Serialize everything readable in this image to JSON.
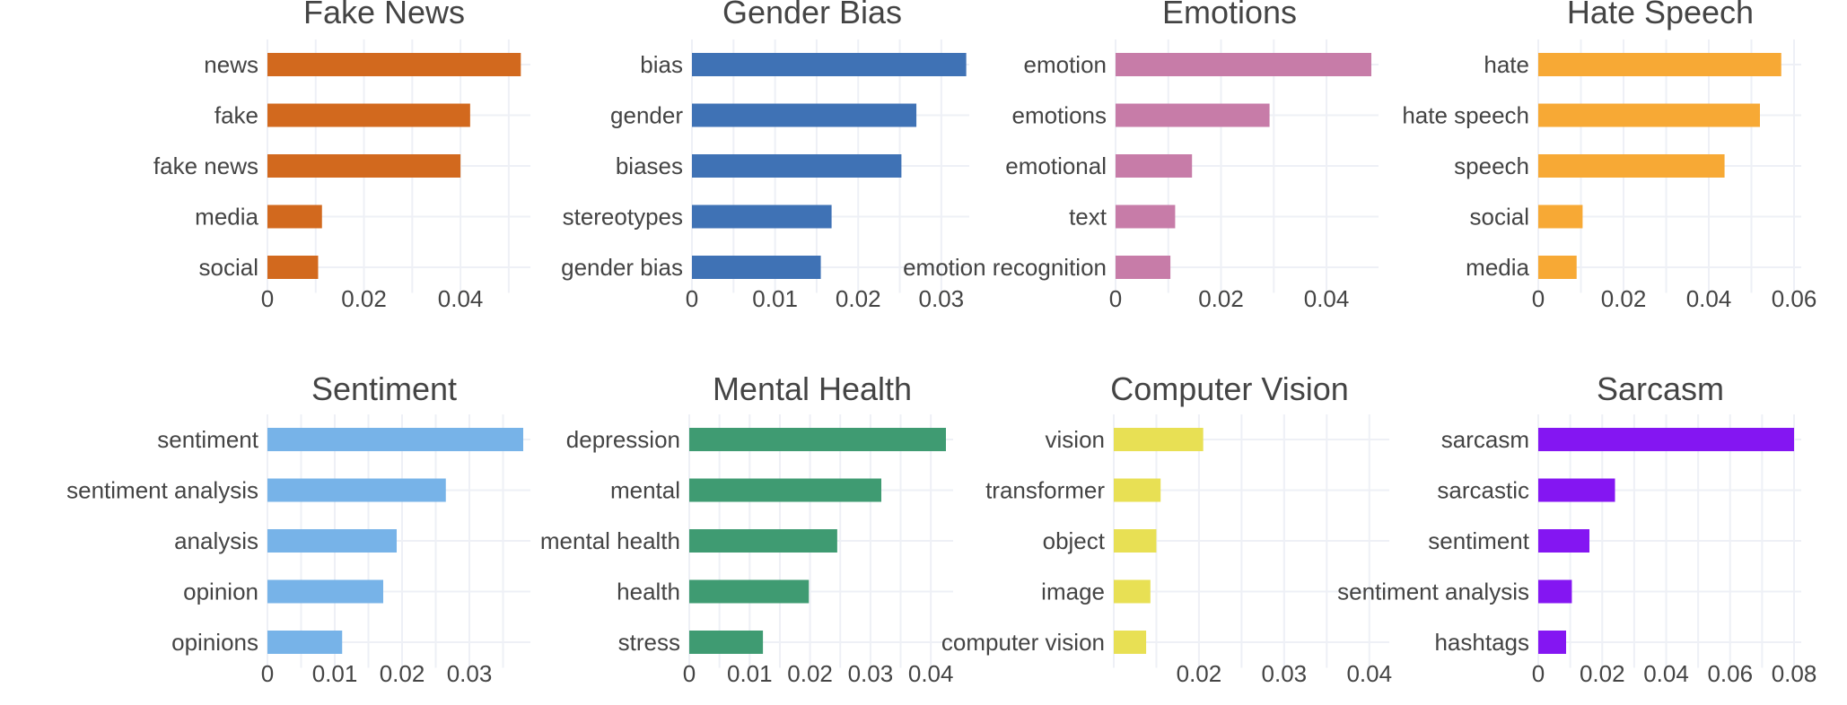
{
  "chart_data": [
    {
      "type": "bar",
      "orientation": "horizontal",
      "title": "Fake News",
      "categories": [
        "news",
        "fake",
        "fake news",
        "media",
        "social"
      ],
      "values": [
        0.0525,
        0.042,
        0.04,
        0.0113,
        0.0105
      ],
      "color": "#D2691E",
      "xlim": [
        0,
        0.053
      ],
      "xticks": [
        0,
        0.02,
        0.04
      ],
      "xtick_labels": [
        "0",
        "0.02",
        "0.04"
      ],
      "grid": true
    },
    {
      "type": "bar",
      "orientation": "horizontal",
      "title": "Gender Bias",
      "categories": [
        "bias",
        "gender",
        "biases",
        "stereotypes",
        "gender bias"
      ],
      "values": [
        0.033,
        0.027,
        0.0252,
        0.0168,
        0.0155
      ],
      "color": "#3F72B5",
      "xlim": [
        0,
        0.0325
      ],
      "xticks": [
        0,
        0.01,
        0.02,
        0.03
      ],
      "xtick_labels": [
        "0",
        "0.01",
        "0.02",
        "0.03"
      ],
      "grid": true
    },
    {
      "type": "bar",
      "orientation": "horizontal",
      "title": "Emotions",
      "categories": [
        "emotion",
        "emotions",
        "emotional",
        "text",
        "emotion recognition"
      ],
      "values": [
        0.0485,
        0.0292,
        0.0145,
        0.0113,
        0.0104
      ],
      "color": "#C77CA8",
      "xlim": [
        0,
        0.0485
      ],
      "xticks": [
        0,
        0.02,
        0.04
      ],
      "xtick_labels": [
        "0",
        "0.02",
        "0.04"
      ],
      "grid": true
    },
    {
      "type": "bar",
      "orientation": "horizontal",
      "title": "Hate Speech",
      "categories": [
        "hate",
        "hate speech",
        "speech",
        "social",
        "media"
      ],
      "values": [
        0.057,
        0.052,
        0.0437,
        0.0104,
        0.009
      ],
      "color": "#F7A935",
      "xlim": [
        0,
        0.06
      ],
      "xticks": [
        0,
        0.02,
        0.04,
        0.06
      ],
      "xtick_labels": [
        "0",
        "0.02",
        "0.04",
        "0.06"
      ],
      "grid": true
    },
    {
      "type": "bar",
      "orientation": "horizontal",
      "title": "Sentiment",
      "categories": [
        "sentiment",
        "sentiment analysis",
        "analysis",
        "opinion",
        "opinions"
      ],
      "values": [
        0.038,
        0.0265,
        0.0192,
        0.0172,
        0.0111
      ],
      "color": "#77B3E8",
      "xlim": [
        0,
        0.038
      ],
      "xticks": [
        0,
        0.01,
        0.02,
        0.03
      ],
      "xtick_labels": [
        "0",
        "0.01",
        "0.02",
        "0.03"
      ],
      "grid": true
    },
    {
      "type": "bar",
      "orientation": "horizontal",
      "title": "Mental Health",
      "categories": [
        "depression",
        "mental",
        "mental health",
        "health",
        "stress"
      ],
      "values": [
        0.0425,
        0.0318,
        0.0245,
        0.0198,
        0.0122
      ],
      "color": "#3F9B72",
      "xlim": [
        0,
        0.0425
      ],
      "xticks": [
        0,
        0.01,
        0.02,
        0.03,
        0.04
      ],
      "xtick_labels": [
        "0",
        "0.01",
        "0.02",
        "0.03",
        "0.04"
      ],
      "grid": true
    },
    {
      "type": "bar",
      "orientation": "horizontal",
      "title": "Computer Vision",
      "categories": [
        "vision",
        "transformer",
        "object",
        "image",
        "computer vision"
      ],
      "values": [
        0.0205,
        0.0155,
        0.015,
        0.0143,
        0.0138
      ],
      "color": "#E8E054",
      "xlim": [
        0.01,
        0.0415
      ],
      "xticks": [
        0.02,
        0.03,
        0.04
      ],
      "xtick_labels": [
        "0.02",
        "0.03",
        "0.04"
      ],
      "grid": true
    },
    {
      "type": "bar",
      "orientation": "horizontal",
      "title": "Sarcasm",
      "categories": [
        "sarcasm",
        "sarcastic",
        "sentiment",
        "sentiment analysis",
        "hashtags"
      ],
      "values": [
        0.08,
        0.024,
        0.016,
        0.0105,
        0.0087
      ],
      "color": "#8416F2",
      "xlim": [
        0,
        0.08
      ],
      "xticks": [
        0,
        0.02,
        0.04,
        0.06,
        0.08
      ],
      "xtick_labels": [
        "0",
        "0.02",
        "0.04",
        "0.06",
        "0.08"
      ],
      "grid": true
    }
  ]
}
